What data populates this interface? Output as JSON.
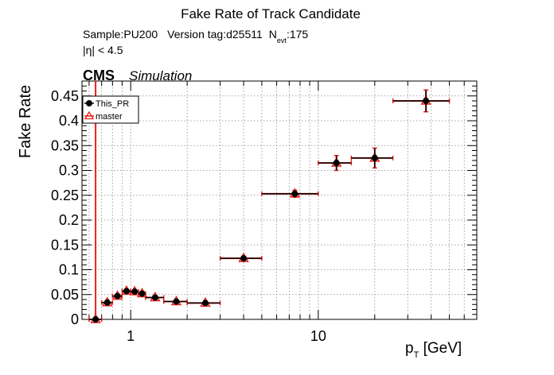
{
  "chart_data": {
    "type": "scatter",
    "title": "Fake Rate of Track Candidate",
    "info_line1": {
      "sample": "Sample:PU200",
      "version": "Version tag:d25511",
      "nevt_symbol": "N",
      "nevt_sub": "evt",
      "nevt_value": ":175"
    },
    "info_line2": "|η| < 4.5",
    "cms_label": "CMS",
    "cms_sublabel": "Simulation",
    "ylabel": "Fake Rate",
    "xlabel_main": "p",
    "xlabel_sub": "T",
    "xlabel_unit": " [GeV]",
    "x_scale": "log",
    "xlim": [
      0.55,
      70
    ],
    "ylim": [
      0,
      0.48
    ],
    "grid": true,
    "legend_position": "top-left",
    "y_ticks": [
      {
        "value": 0,
        "label": "0"
      },
      {
        "value": 0.05,
        "label": "0.05"
      },
      {
        "value": 0.1,
        "label": "0.1"
      },
      {
        "value": 0.15,
        "label": "0.15"
      },
      {
        "value": 0.2,
        "label": "0.2"
      },
      {
        "value": 0.25,
        "label": "0.25"
      },
      {
        "value": 0.3,
        "label": "0.3"
      },
      {
        "value": 0.35,
        "label": "0.35"
      },
      {
        "value": 0.4,
        "label": "0.4"
      },
      {
        "value": 0.45,
        "label": "0.45"
      }
    ],
    "x_ticks": [
      {
        "value": 1,
        "label": "1"
      },
      {
        "value": 10,
        "label": "10"
      }
    ],
    "series": [
      {
        "name": "This_PR",
        "color": "#000000",
        "marker": "circle",
        "points": [
          {
            "x": 0.65,
            "xlo": 0.6,
            "xhi": 0.7,
            "y": 0.0,
            "ylo": 0.0,
            "yhi": 0.0
          },
          {
            "x": 0.75,
            "xlo": 0.7,
            "xhi": 0.8,
            "y": 0.034,
            "ylo": 0.031,
            "yhi": 0.037
          },
          {
            "x": 0.85,
            "xlo": 0.8,
            "xhi": 0.9,
            "y": 0.047,
            "ylo": 0.044,
            "yhi": 0.05
          },
          {
            "x": 0.95,
            "xlo": 0.9,
            "xhi": 1.0,
            "y": 0.057,
            "ylo": 0.054,
            "yhi": 0.06
          },
          {
            "x": 1.05,
            "xlo": 1.0,
            "xhi": 1.1,
            "y": 0.056,
            "ylo": 0.053,
            "yhi": 0.059
          },
          {
            "x": 1.15,
            "xlo": 1.1,
            "xhi": 1.2,
            "y": 0.052,
            "ylo": 0.049,
            "yhi": 0.055
          },
          {
            "x": 1.35,
            "xlo": 1.2,
            "xhi": 1.5,
            "y": 0.044,
            "ylo": 0.041,
            "yhi": 0.047
          },
          {
            "x": 1.75,
            "xlo": 1.5,
            "xhi": 2.0,
            "y": 0.036,
            "ylo": 0.033,
            "yhi": 0.039
          },
          {
            "x": 2.5,
            "xlo": 2.0,
            "xhi": 3.0,
            "y": 0.033,
            "ylo": 0.03,
            "yhi": 0.036
          },
          {
            "x": 4.0,
            "xlo": 3.0,
            "xhi": 5.0,
            "y": 0.123,
            "ylo": 0.119,
            "yhi": 0.127
          },
          {
            "x": 7.5,
            "xlo": 5.0,
            "xhi": 10.0,
            "y": 0.253,
            "ylo": 0.246,
            "yhi": 0.26
          },
          {
            "x": 12.5,
            "xlo": 10.0,
            "xhi": 15.0,
            "y": 0.315,
            "ylo": 0.3,
            "yhi": 0.33
          },
          {
            "x": 20.0,
            "xlo": 15.0,
            "xhi": 25.0,
            "y": 0.325,
            "ylo": 0.305,
            "yhi": 0.345
          },
          {
            "x": 37.5,
            "xlo": 25.0,
            "xhi": 50.0,
            "y": 0.44,
            "ylo": 0.418,
            "yhi": 0.462
          }
        ]
      },
      {
        "name": "master",
        "color": "#e8201a",
        "marker": "triangle-open",
        "points": [
          {
            "x": 0.65,
            "xlo": 0.6,
            "xhi": 0.7,
            "y": 0.0,
            "ylo": 0.0,
            "yhi": 0.48
          },
          {
            "x": 0.75,
            "xlo": 0.7,
            "xhi": 0.8,
            "y": 0.034,
            "ylo": 0.031,
            "yhi": 0.037
          },
          {
            "x": 0.85,
            "xlo": 0.8,
            "xhi": 0.9,
            "y": 0.047,
            "ylo": 0.044,
            "yhi": 0.05
          },
          {
            "x": 0.95,
            "xlo": 0.9,
            "xhi": 1.0,
            "y": 0.057,
            "ylo": 0.054,
            "yhi": 0.06
          },
          {
            "x": 1.05,
            "xlo": 1.0,
            "xhi": 1.1,
            "y": 0.056,
            "ylo": 0.053,
            "yhi": 0.059
          },
          {
            "x": 1.15,
            "xlo": 1.1,
            "xhi": 1.2,
            "y": 0.052,
            "ylo": 0.049,
            "yhi": 0.055
          },
          {
            "x": 1.35,
            "xlo": 1.2,
            "xhi": 1.5,
            "y": 0.044,
            "ylo": 0.041,
            "yhi": 0.047
          },
          {
            "x": 1.75,
            "xlo": 1.5,
            "xhi": 2.0,
            "y": 0.036,
            "ylo": 0.033,
            "yhi": 0.039
          },
          {
            "x": 2.5,
            "xlo": 2.0,
            "xhi": 3.0,
            "y": 0.033,
            "ylo": 0.03,
            "yhi": 0.036
          },
          {
            "x": 4.0,
            "xlo": 3.0,
            "xhi": 5.0,
            "y": 0.123,
            "ylo": 0.119,
            "yhi": 0.127
          },
          {
            "x": 7.5,
            "xlo": 5.0,
            "xhi": 10.0,
            "y": 0.253,
            "ylo": 0.246,
            "yhi": 0.26
          },
          {
            "x": 12.5,
            "xlo": 10.0,
            "xhi": 15.0,
            "y": 0.315,
            "ylo": 0.3,
            "yhi": 0.33
          },
          {
            "x": 20.0,
            "xlo": 15.0,
            "xhi": 25.0,
            "y": 0.325,
            "ylo": 0.305,
            "yhi": 0.345
          },
          {
            "x": 37.5,
            "xlo": 25.0,
            "xhi": 50.0,
            "y": 0.44,
            "ylo": 0.418,
            "yhi": 0.462
          }
        ]
      }
    ]
  }
}
